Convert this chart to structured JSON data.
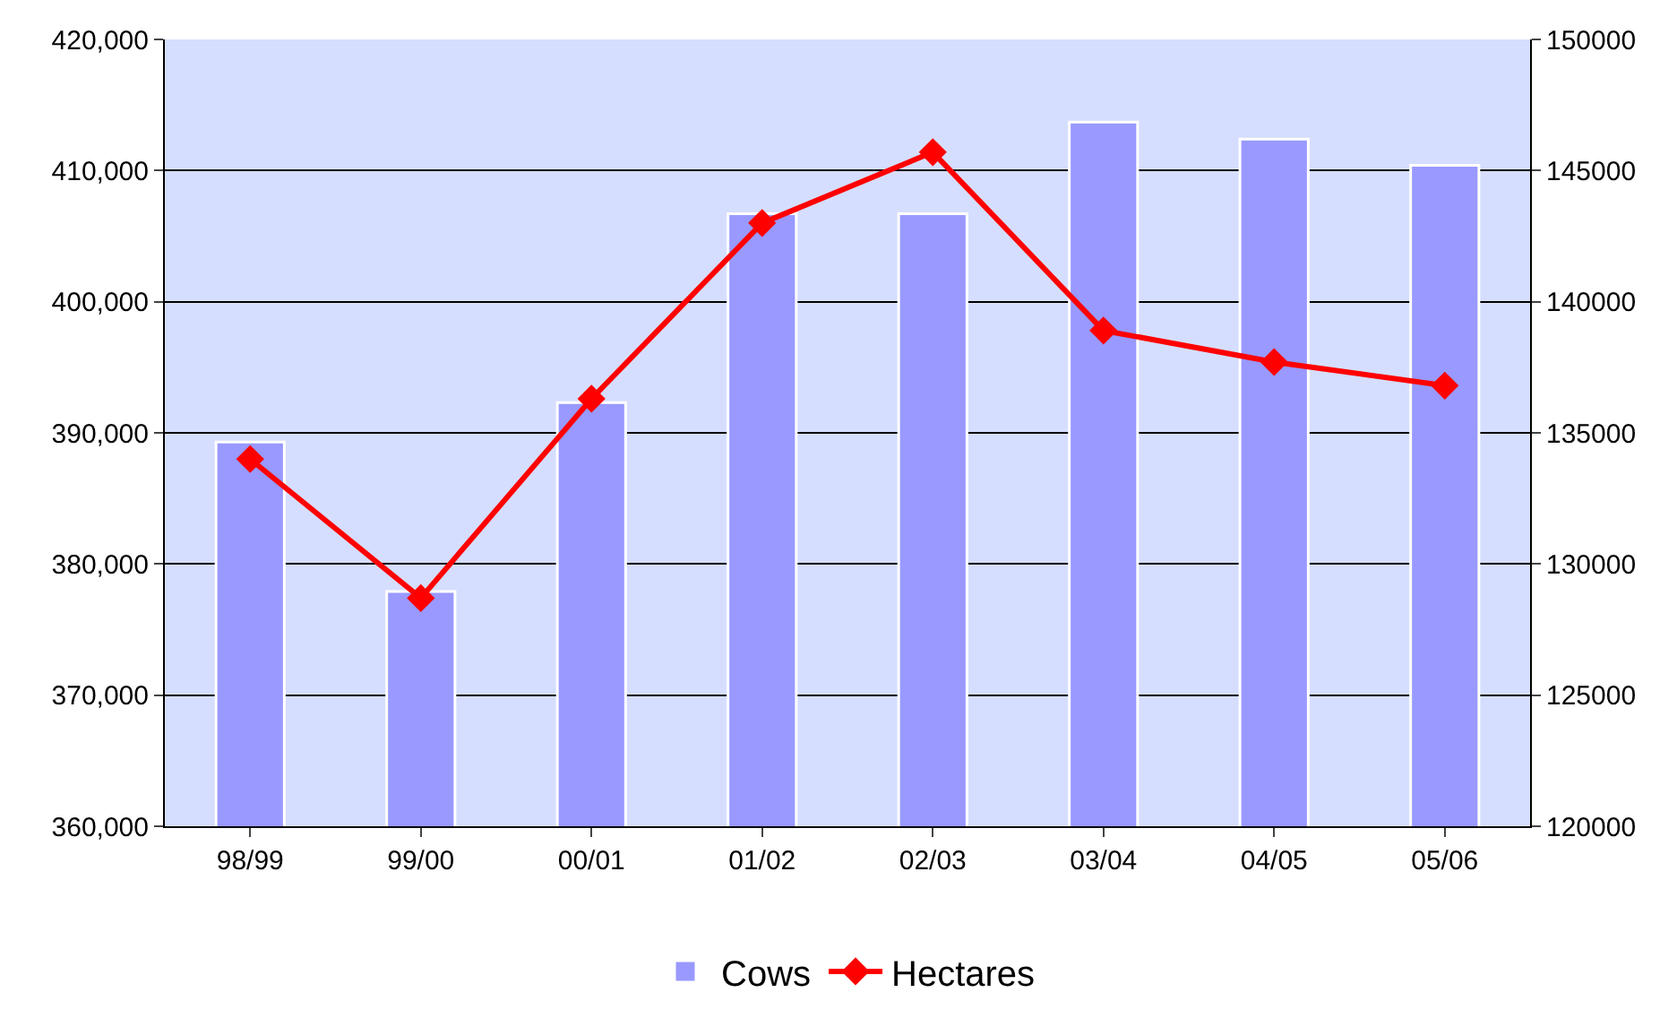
{
  "chart_data": {
    "type": "bar",
    "categories": [
      "98/99",
      "99/00",
      "00/01",
      "01/02",
      "02/03",
      "03/04",
      "04/05",
      "05/06"
    ],
    "series": [
      {
        "name": "Cows",
        "color": "#9999ff",
        "values": [
          389300,
          377900,
          392300,
          406700,
          406700,
          413700,
          412400,
          410400
        ]
      },
      {
        "name": "Hectares",
        "type": "line",
        "axis": "y2",
        "color": "#ff0000",
        "marker": "diamond",
        "values": [
          134000,
          128700,
          136300,
          143000,
          145700,
          138900,
          137700,
          136800
        ]
      }
    ],
    "ylim": [
      360000,
      420000
    ],
    "yticks": [
      {
        "value": 360000,
        "label": "360,000"
      },
      {
        "value": 370000,
        "label": "370,000"
      },
      {
        "value": 380000,
        "label": "380,000"
      },
      {
        "value": 390000,
        "label": "390,000"
      },
      {
        "value": 400000,
        "label": "400,000"
      },
      {
        "value": 410000,
        "label": "410,000"
      },
      {
        "value": 420000,
        "label": "420,000"
      }
    ],
    "y2lim": [
      120000,
      150000
    ],
    "y2ticks": [
      120000,
      125000,
      130000,
      135000,
      140000,
      145000,
      150000
    ],
    "grid": "y",
    "legend": "bottom"
  }
}
